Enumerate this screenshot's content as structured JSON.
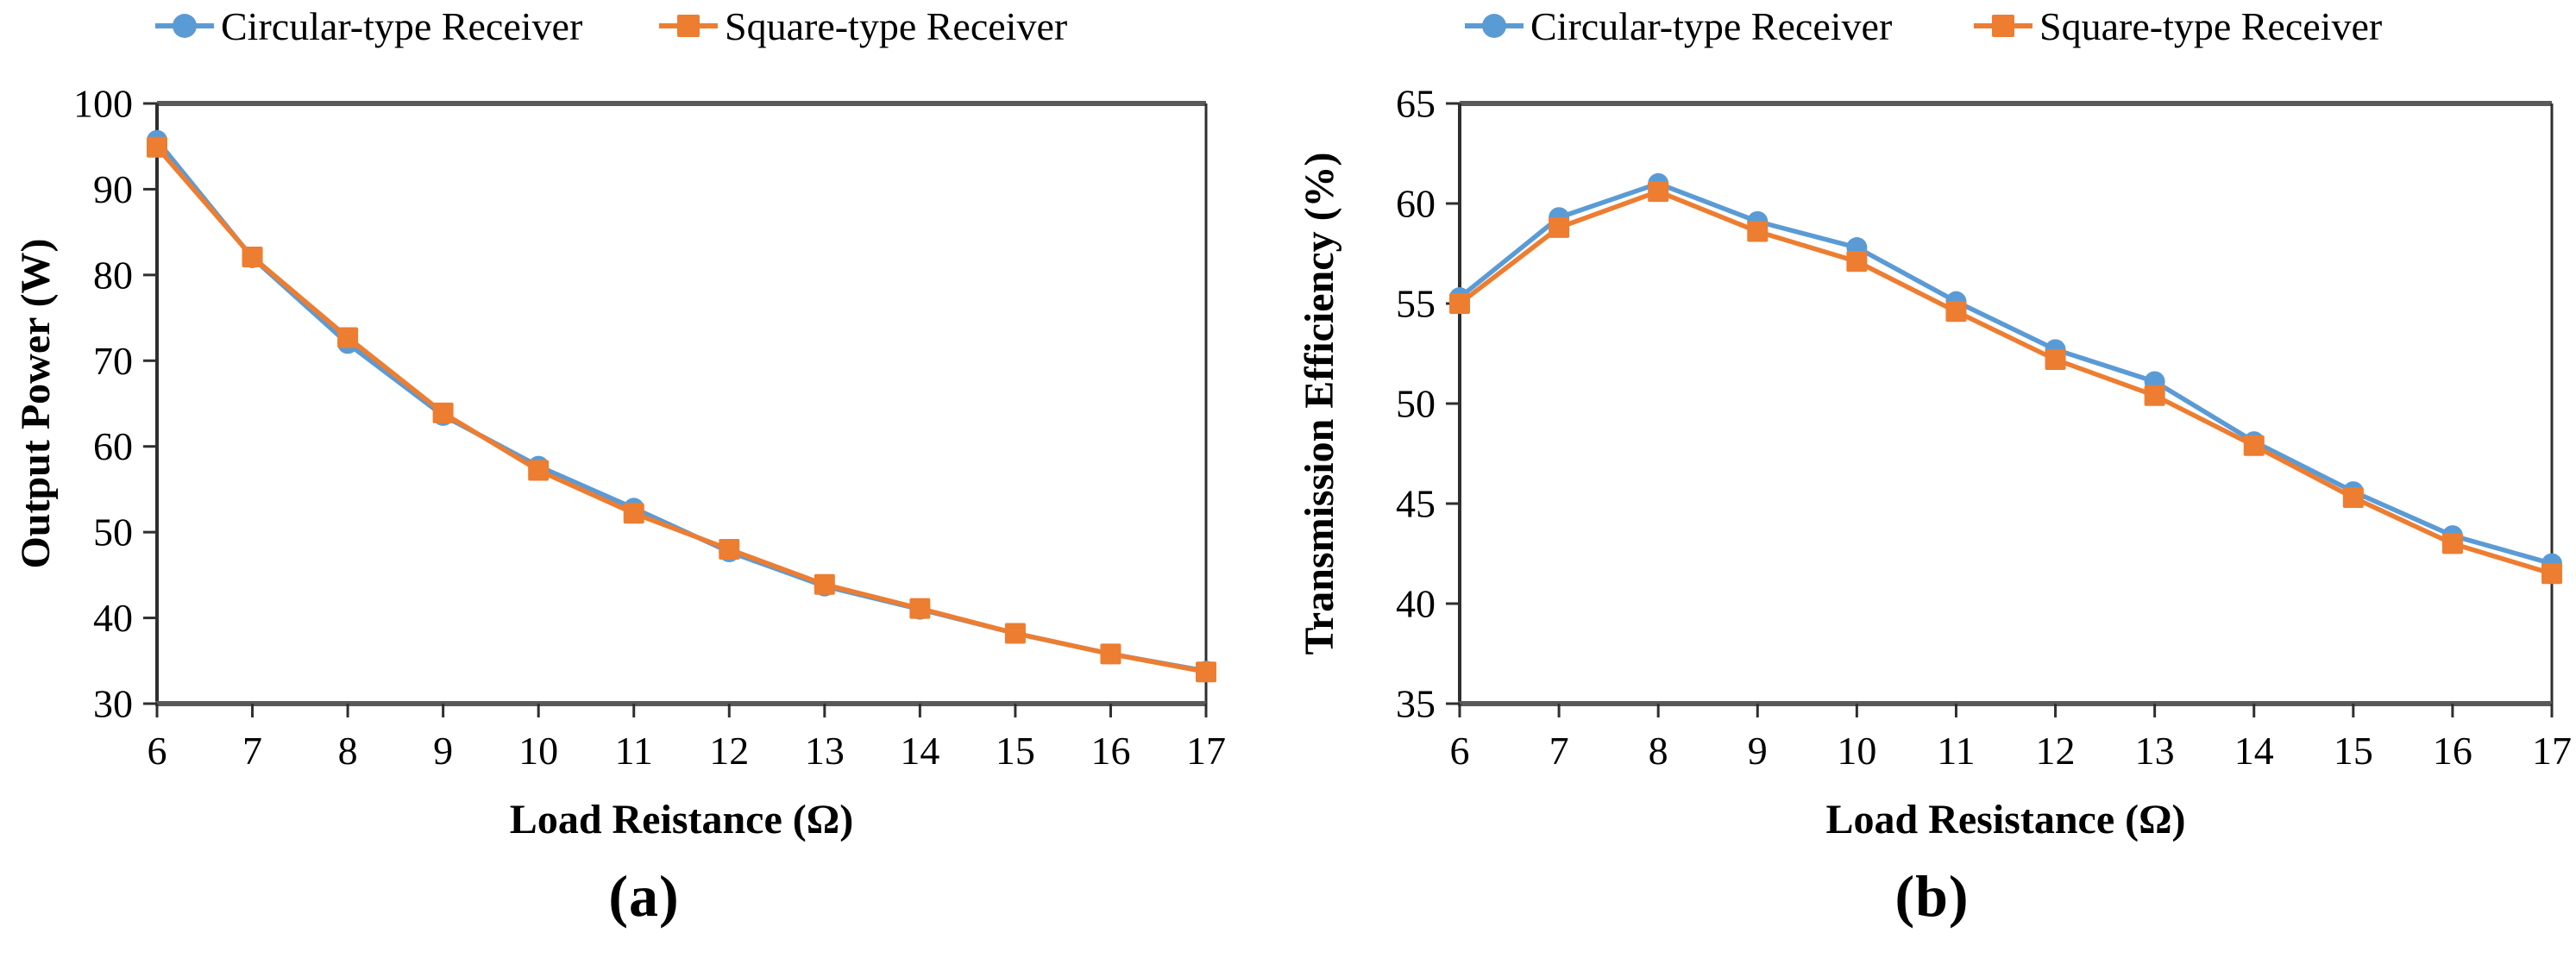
{
  "page": {
    "background": "#ffffff"
  },
  "colors": {
    "circular_series": "#5B9BD5",
    "square_series": "#ED7D31",
    "axis_border": "#595959",
    "axis_line": "#2f2f2f",
    "tick": "#2f2f2f",
    "text": "#000000"
  },
  "legend": {
    "items": [
      {
        "label": "Circular-type Receiver",
        "marker": "circle-icon",
        "color": "#5B9BD5"
      },
      {
        "label": "Square-type Receiver",
        "marker": "square-icon",
        "color": "#ED7D31"
      }
    ]
  },
  "captions": {
    "a": "(a)",
    "b": "(b)"
  },
  "chart_data": [
    {
      "id": "output-power-chart",
      "type": "line",
      "title": "",
      "xlabel": "Load Reistance (Ω)",
      "ylabel": "Output Power (W)",
      "x": [
        6,
        7,
        8,
        9,
        10,
        11,
        12,
        13,
        14,
        15,
        16,
        17
      ],
      "xlim": [
        6,
        17
      ],
      "ylim": [
        30,
        100
      ],
      "ytick_step": 10,
      "yticks": [
        30,
        40,
        50,
        60,
        70,
        80,
        90,
        100
      ],
      "grid": false,
      "legend_position": "top",
      "series": [
        {
          "name": "Circular-type Receiver",
          "marker": "circle",
          "color": "#5B9BD5",
          "values": [
            95.7,
            82.0,
            72.0,
            63.6,
            57.7,
            52.8,
            47.7,
            43.7,
            41.0,
            38.2,
            35.8,
            33.8
          ]
        },
        {
          "name": "Square-type Receiver",
          "marker": "square",
          "color": "#ED7D31",
          "values": [
            94.9,
            82.1,
            72.7,
            63.9,
            57.2,
            52.2,
            48.0,
            43.9,
            41.1,
            38.2,
            35.8,
            33.7
          ]
        }
      ],
      "caption": "(a)"
    },
    {
      "id": "transmission-efficiency-chart",
      "type": "line",
      "title": "",
      "xlabel": "Load Resistance (Ω)",
      "ylabel": "Transmission Efficiency (%)",
      "x": [
        6,
        7,
        8,
        9,
        10,
        11,
        12,
        13,
        14,
        15,
        16,
        17
      ],
      "xlim": [
        6,
        17
      ],
      "ylim": [
        35,
        65
      ],
      "ytick_step": 5,
      "yticks": [
        35,
        40,
        45,
        50,
        55,
        60,
        65
      ],
      "grid": false,
      "legend_position": "top",
      "series": [
        {
          "name": "Circular-type Receiver",
          "marker": "circle",
          "color": "#5B9BD5",
          "values": [
            55.3,
            59.3,
            61.0,
            59.1,
            57.8,
            55.1,
            52.7,
            51.1,
            48.1,
            45.6,
            43.4,
            42.0
          ]
        },
        {
          "name": "Square-type Receiver",
          "marker": "square",
          "color": "#ED7D31",
          "values": [
            55.0,
            58.8,
            60.6,
            58.6,
            57.1,
            54.6,
            52.2,
            50.4,
            47.9,
            45.3,
            43.0,
            41.5
          ]
        }
      ],
      "caption": "(b)"
    }
  ]
}
